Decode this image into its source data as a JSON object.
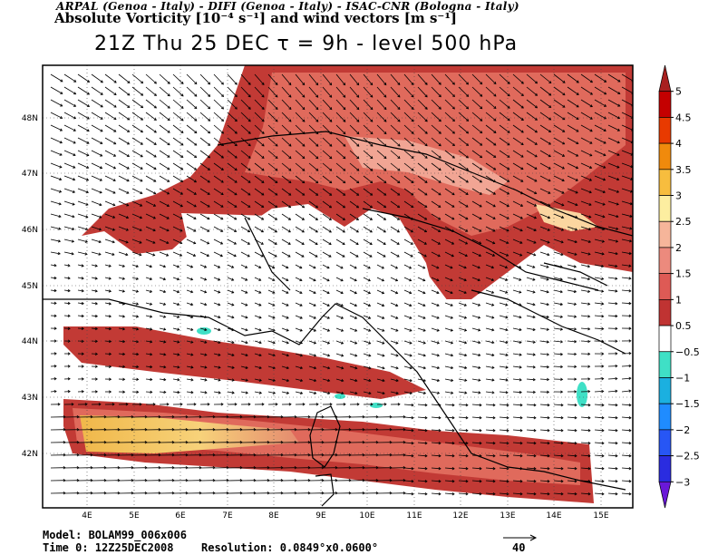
{
  "header": {
    "line1": "ARPAL (Genoa - Italy)  -  DIFI (Genoa - Italy)  -  ISAC-CNR (Bologna - Italy)",
    "line2": "Absolute Vorticity [10⁻⁴ s⁻¹] and wind vectors [m s⁻¹]",
    "line3": "21Z Thu 25 DEC   τ = 9h   -   level 500 hPa"
  },
  "map": {
    "lon_labels": [
      "4E",
      "5E",
      "6E",
      "7E",
      "8E",
      "9E",
      "10E",
      "11E",
      "12E",
      "13E",
      "14E",
      "15E"
    ],
    "lat_labels": [
      "48N",
      "47N",
      "46N",
      "45N",
      "44N",
      "43N",
      "42N"
    ],
    "field": "absolute vorticity",
    "vectors": "wind vectors"
  },
  "colorbar": {
    "labels": [
      "5",
      "4.5",
      "4",
      "3.5",
      "3",
      "2.5",
      "2",
      "1.5",
      "1",
      "0.5",
      "−0.5",
      "−1",
      "−1.5",
      "−2",
      "−2.5",
      "−3"
    ],
    "colors": [
      "#a8201f",
      "#c40000",
      "#e83a00",
      "#f08a0c",
      "#f7bd3e",
      "#fdeea0",
      "#f6b59a",
      "#ec8a7d",
      "#de5a55",
      "#c03332",
      "#ffffff",
      "#3fe0c6",
      "#1bb0e0",
      "#1f8cff",
      "#2756f5",
      "#2a2ce0",
      "#6a18d8"
    ]
  },
  "footer": {
    "model": "Model: BOLAM99_006x006",
    "time": "Time 0: 12Z25DEC2008",
    "resolution": "Resolution: 0.0849°x0.0600°",
    "ref_vector": "40"
  }
}
